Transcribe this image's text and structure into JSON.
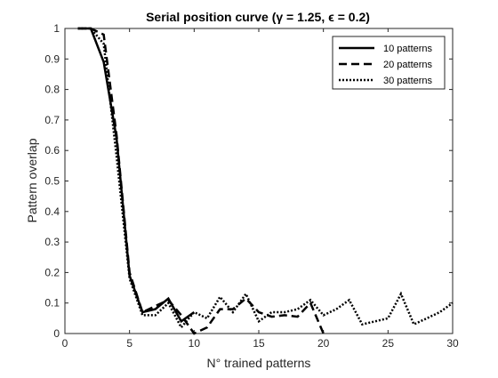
{
  "chart_data": {
    "type": "line",
    "title": "Serial position curve (γ = 1.25, ϵ = 0.2)",
    "xlabel": "N° trained patterns",
    "ylabel": "Pattern overlap",
    "xlim": [
      0,
      30
    ],
    "ylim": [
      0,
      1
    ],
    "xticks": [
      "0",
      "5",
      "10",
      "15",
      "20",
      "25",
      "30"
    ],
    "yticks": [
      "0",
      "0.1",
      "0.2",
      "0.3",
      "0.4",
      "0.5",
      "0.6",
      "0.7",
      "0.8",
      "0.9",
      "1"
    ],
    "grid": false,
    "legend_position": "top-right",
    "series": [
      {
        "name": "10 patterns",
        "style": "solid",
        "color": "#000000",
        "x": [
          1,
          2,
          3,
          4,
          5,
          6,
          7,
          8,
          9,
          10
        ],
        "y": [
          1.0,
          1.0,
          0.89,
          0.64,
          0.19,
          0.07,
          0.08,
          0.115,
          0.04,
          0.07
        ]
      },
      {
        "name": "20 patterns",
        "style": "dashed",
        "color": "#000000",
        "x": [
          1,
          2,
          3,
          4,
          5,
          6,
          7,
          8,
          9,
          10,
          11,
          12,
          13,
          14,
          15,
          16,
          17,
          18,
          19,
          20
        ],
        "y": [
          1.0,
          1.0,
          0.98,
          0.65,
          0.2,
          0.07,
          0.09,
          0.11,
          0.06,
          0.0,
          0.02,
          0.08,
          0.08,
          0.115,
          0.07,
          0.055,
          0.06,
          0.055,
          0.1,
          0.0
        ]
      },
      {
        "name": "30 patterns",
        "style": "dotted",
        "color": "#000000",
        "x": [
          1,
          2,
          3,
          4,
          5,
          6,
          7,
          8,
          9,
          10,
          11,
          12,
          13,
          14,
          15,
          16,
          17,
          18,
          19,
          20,
          21,
          22,
          23,
          24,
          25,
          26,
          27,
          28,
          29,
          30
        ],
        "y": [
          1.0,
          1.0,
          0.95,
          0.58,
          0.18,
          0.06,
          0.06,
          0.1,
          0.02,
          0.07,
          0.05,
          0.12,
          0.07,
          0.13,
          0.04,
          0.07,
          0.07,
          0.08,
          0.11,
          0.06,
          0.08,
          0.11,
          0.03,
          0.04,
          0.05,
          0.13,
          0.03,
          0.05,
          0.07,
          0.1
        ]
      }
    ]
  }
}
